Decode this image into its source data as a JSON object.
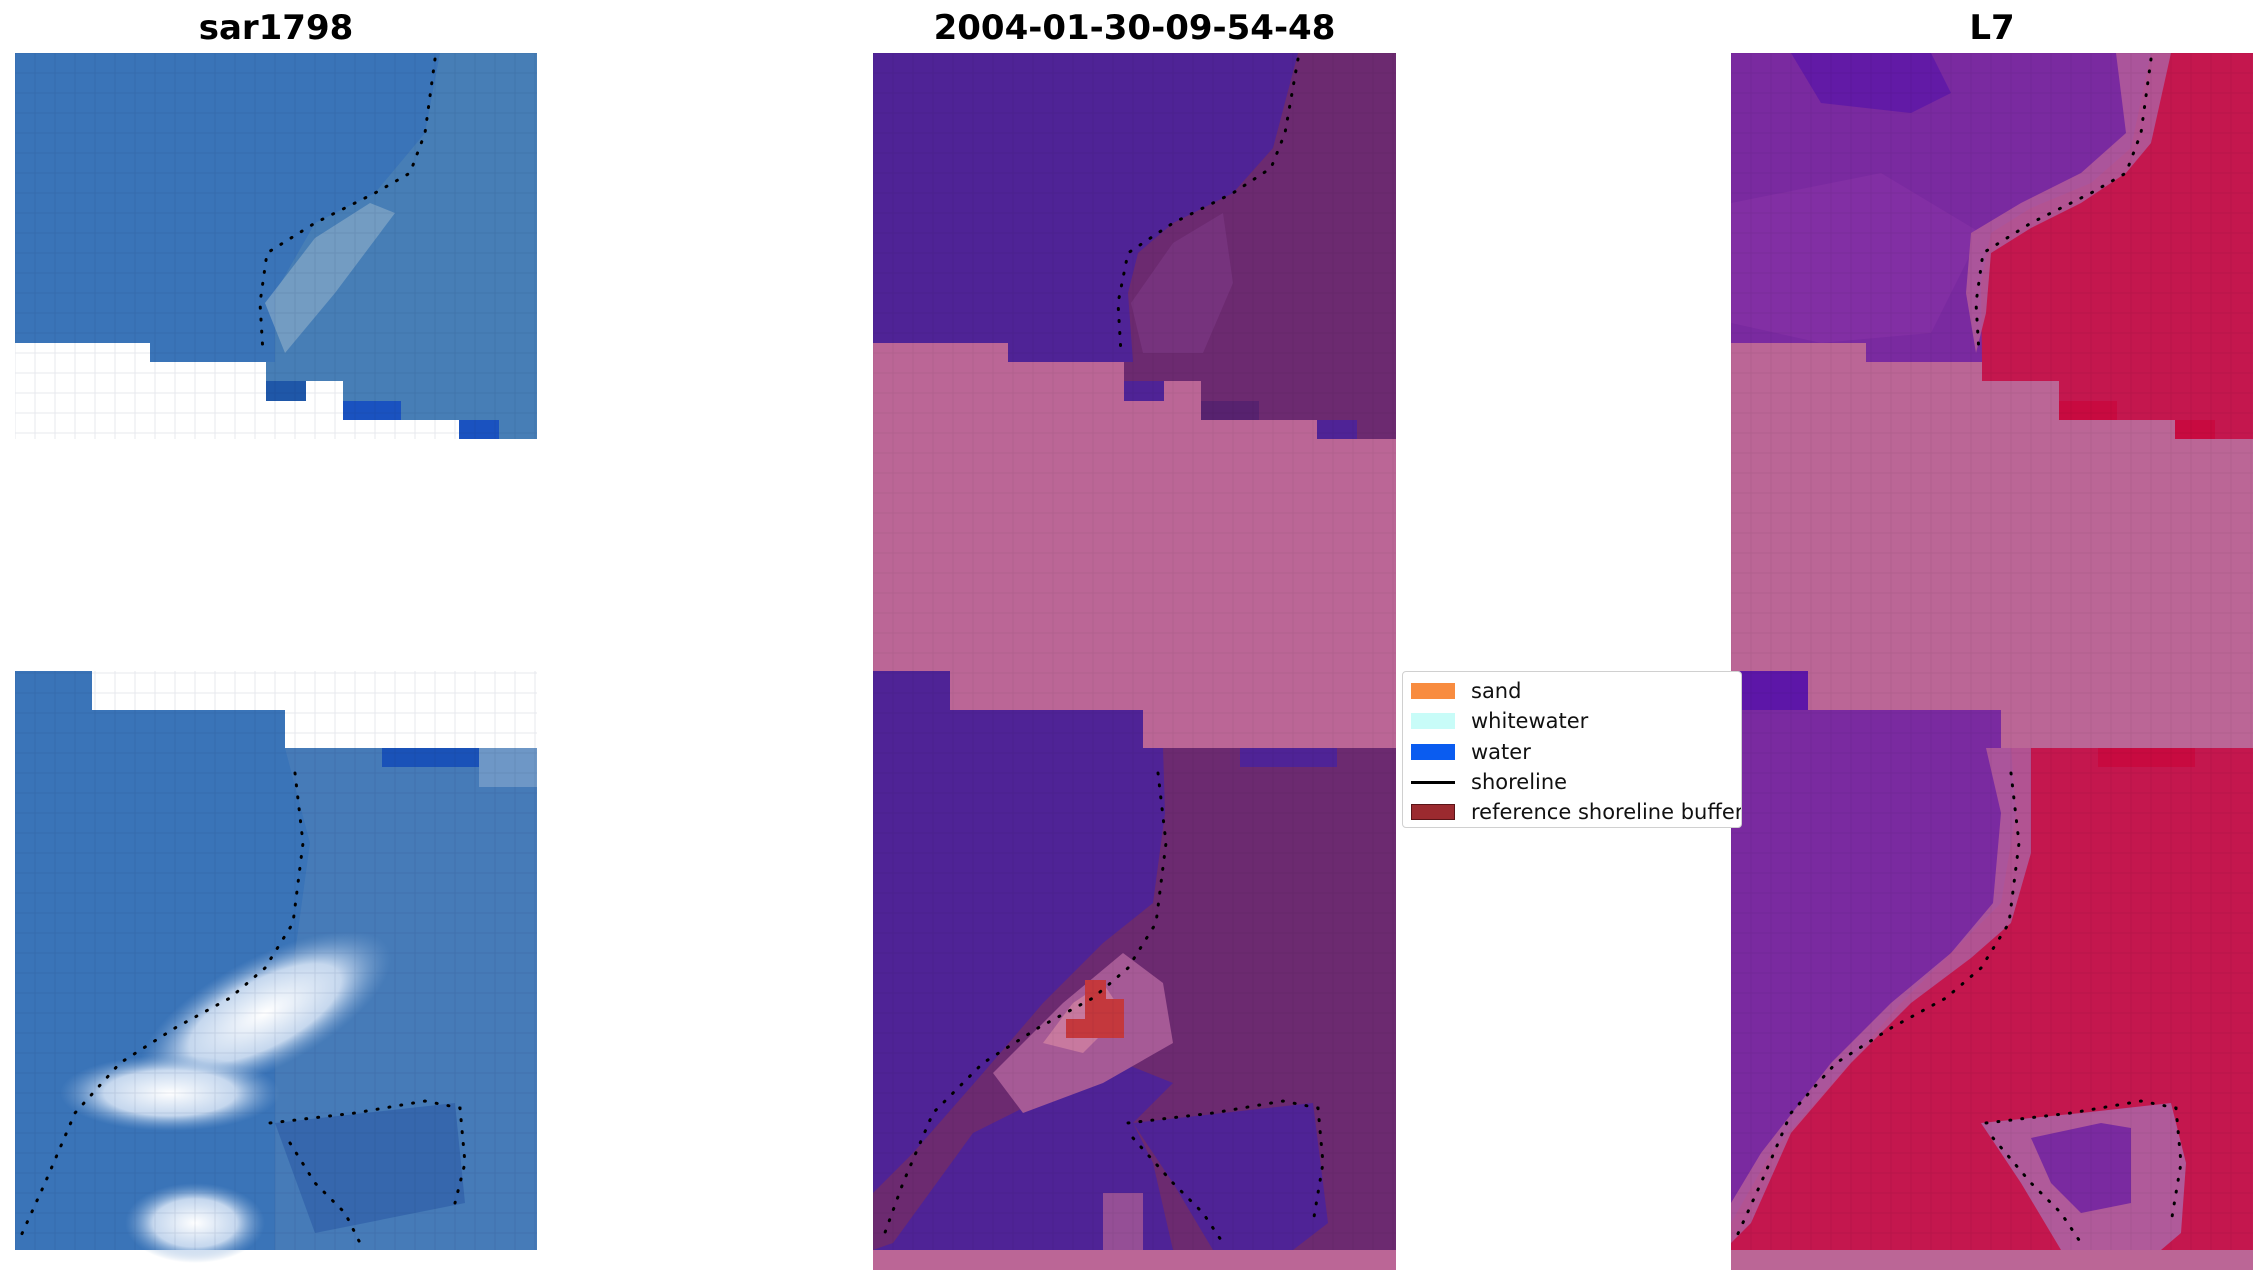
{
  "panels": {
    "left_title": "sar1798",
    "center_title": "2004-01-30-09-54-48",
    "right_title": "L7"
  },
  "legend": {
    "items": [
      {
        "label": "sand",
        "color": "#f88c40",
        "icon": "swatch"
      },
      {
        "label": "whitewater",
        "color": "#c8fcf8",
        "icon": "swatch"
      },
      {
        "label": "water",
        "color": "#0a5cf0",
        "icon": "swatch"
      },
      {
        "label": "shoreline",
        "color": "#000000",
        "icon": "line"
      },
      {
        "label": "reference shoreline buffer",
        "color": "#9b2a2f",
        "icon": "swatch"
      }
    ]
  },
  "colors": {
    "nodata": "#bb6696",
    "rgb_water": "#3a74b8",
    "class_water": "#4f2396",
    "class_land": "#6c2a70",
    "ndwi_water": "#6f1fa0",
    "ndwi_land": "#c4174e"
  }
}
